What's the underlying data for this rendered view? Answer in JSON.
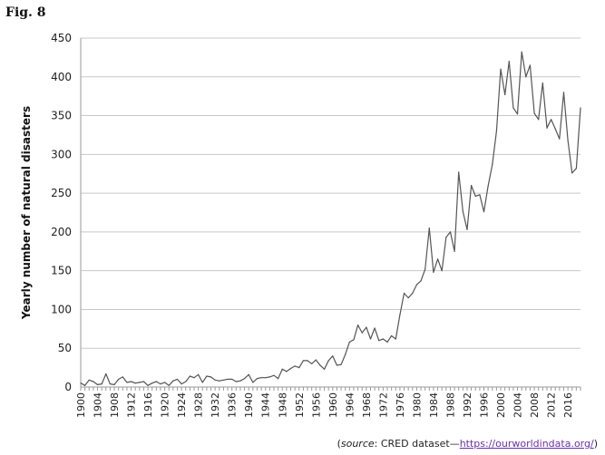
{
  "figure": {
    "label": "Fig. 8"
  },
  "source": {
    "open": "(",
    "italic_word": "source",
    "text": ": CRED dataset—",
    "link": "https://ourworldindata.org/",
    "close": ")"
  },
  "chart_data": {
    "type": "line",
    "title": "",
    "xlabel": "",
    "ylabel": "Yearly number of natural disasters",
    "xlim": [
      1900,
      2019
    ],
    "ylim": [
      0,
      450
    ],
    "x_ticks": [
      1900,
      1904,
      1908,
      1912,
      1916,
      1920,
      1924,
      1928,
      1932,
      1936,
      1940,
      1944,
      1948,
      1952,
      1956,
      1960,
      1964,
      1968,
      1972,
      1976,
      1980,
      1984,
      1988,
      1992,
      1996,
      2000,
      2004,
      2008,
      2012,
      2016
    ],
    "y_ticks": [
      0,
      50,
      100,
      150,
      200,
      250,
      300,
      350,
      400,
      450
    ],
    "grid": "horizontal",
    "line_color": "#555555",
    "series": [
      {
        "x": [
          1900,
          1901,
          1902,
          1903,
          1904,
          1905,
          1906,
          1907,
          1908,
          1909,
          1910,
          1911,
          1912,
          1913,
          1914,
          1915,
          1916,
          1917,
          1918,
          1919,
          1920,
          1921,
          1922,
          1923,
          1924,
          1925,
          1926,
          1927,
          1928,
          1929,
          1930,
          1931,
          1932,
          1933,
          1934,
          1935,
          1936,
          1937,
          1938,
          1939,
          1940,
          1941,
          1942,
          1943,
          1944,
          1945,
          1946,
          1947,
          1948,
          1949,
          1950,
          1951,
          1952,
          1953,
          1954,
          1955,
          1956,
          1957,
          1958,
          1959,
          1960,
          1961,
          1962,
          1963,
          1964,
          1965,
          1966,
          1967,
          1968,
          1969,
          1970,
          1971,
          1972,
          1973,
          1974,
          1975,
          1976,
          1977,
          1978,
          1979,
          1980,
          1981,
          1982,
          1983,
          1984,
          1985,
          1986,
          1987,
          1988,
          1989,
          1990,
          1991,
          1992,
          1993,
          1994,
          1995,
          1996,
          1997,
          1998,
          1999,
          2000,
          2001,
          2002,
          2003,
          2004,
          2005,
          2006,
          2007,
          2008,
          2009,
          2010,
          2011,
          2012,
          2013,
          2014,
          2015,
          2016,
          2017,
          2018,
          2019
        ],
        "values": [
          5,
          2,
          9,
          7,
          3,
          4,
          17,
          4,
          3,
          10,
          13,
          6,
          7,
          5,
          6,
          7,
          2,
          5,
          7,
          4,
          6,
          2,
          8,
          10,
          4,
          7,
          14,
          12,
          16,
          6,
          14,
          13,
          9,
          8,
          9,
          10,
          10,
          7,
          8,
          11,
          16,
          6,
          11,
          12,
          12,
          13,
          15,
          11,
          23,
          20,
          24,
          27,
          25,
          34,
          34,
          30,
          35,
          28,
          23,
          34,
          40,
          28,
          29,
          42,
          58,
          61,
          80,
          70,
          77,
          62,
          76,
          60,
          62,
          58,
          66,
          62,
          93,
          121,
          115,
          121,
          132,
          137,
          152,
          205,
          148,
          165,
          150,
          193,
          200,
          175,
          277,
          226,
          203,
          260,
          246,
          248,
          226,
          259,
          287,
          330,
          410,
          377,
          420,
          360,
          352,
          432,
          400,
          415,
          353,
          345,
          392,
          334,
          345,
          333,
          320,
          380,
          318,
          276,
          282,
          360
        ]
      }
    ]
  }
}
